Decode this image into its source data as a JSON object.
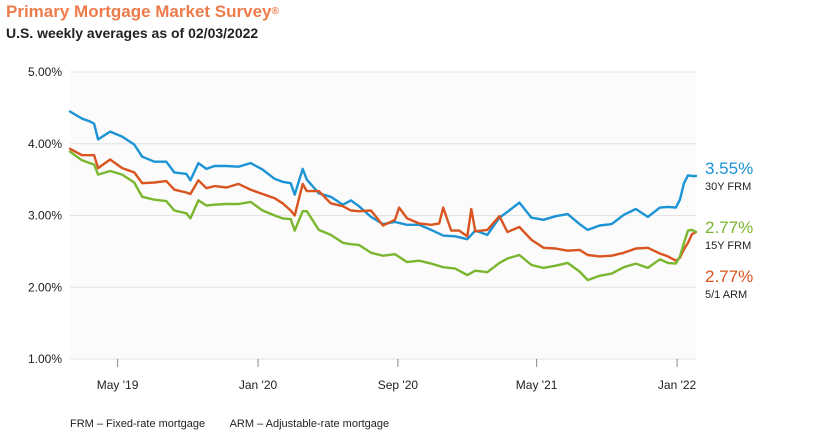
{
  "header": {
    "title": "Primary Mortgage Market Survey",
    "title_mark": "®",
    "subtitle": "U.S. weekly averages as of 02/03/2022"
  },
  "footer": {
    "frm_note": "FRM – Fixed-rate mortgage",
    "arm_note": "ARM – Adjustable-rate mortgage"
  },
  "colors": {
    "frm30": "#1b93d4",
    "frm15": "#7ab62e",
    "arm51": "#d9541f",
    "grid": "#e3e3e3",
    "title": "#ee7b4b"
  },
  "chart_data": {
    "type": "line",
    "title": "Primary Mortgage Market Survey",
    "subtitle": "U.S. weekly averages as of 02/03/2022",
    "xlabel": "",
    "ylabel": "",
    "x_ticks": [
      "May '19",
      "Jan '20",
      "Sep '20",
      "May '21",
      "Jan '22"
    ],
    "x_tick_dates": [
      "2019-05-01",
      "2020-01-01",
      "2020-09-01",
      "2021-05-01",
      "2022-01-01"
    ],
    "y_ticks": [
      "1.00%",
      "2.00%",
      "3.00%",
      "4.00%",
      "5.00%"
    ],
    "ylim": [
      1.0,
      5.0
    ],
    "xlim": [
      "2019-02-07",
      "2022-02-03"
    ],
    "grid": true,
    "legend": "right-end labels",
    "series": [
      {
        "name": "30Y FRM",
        "last_value_label": "3.55%",
        "color_key": "frm30",
        "points": [
          [
            "2019-02-07",
            4.45
          ],
          [
            "2019-02-28",
            4.35
          ],
          [
            "2019-03-14",
            4.31
          ],
          [
            "2019-03-21",
            4.28
          ],
          [
            "2019-03-28",
            4.06
          ],
          [
            "2019-04-18",
            4.17
          ],
          [
            "2019-05-09",
            4.1
          ],
          [
            "2019-05-30",
            3.99
          ],
          [
            "2019-06-13",
            3.82
          ],
          [
            "2019-07-04",
            3.75
          ],
          [
            "2019-07-25",
            3.75
          ],
          [
            "2019-08-08",
            3.6
          ],
          [
            "2019-08-29",
            3.58
          ],
          [
            "2019-09-05",
            3.49
          ],
          [
            "2019-09-19",
            3.73
          ],
          [
            "2019-10-03",
            3.65
          ],
          [
            "2019-10-17",
            3.69
          ],
          [
            "2019-11-07",
            3.69
          ],
          [
            "2019-11-28",
            3.68
          ],
          [
            "2019-12-19",
            3.73
          ],
          [
            "2020-01-09",
            3.64
          ],
          [
            "2020-01-30",
            3.51
          ],
          [
            "2020-02-13",
            3.47
          ],
          [
            "2020-02-27",
            3.45
          ],
          [
            "2020-03-05",
            3.29
          ],
          [
            "2020-03-19",
            3.65
          ],
          [
            "2020-03-26",
            3.5
          ],
          [
            "2020-04-16",
            3.31
          ],
          [
            "2020-05-07",
            3.26
          ],
          [
            "2020-05-28",
            3.15
          ],
          [
            "2020-06-11",
            3.21
          ],
          [
            "2020-06-25",
            3.13
          ],
          [
            "2020-07-16",
            2.98
          ],
          [
            "2020-08-06",
            2.88
          ],
          [
            "2020-08-27",
            2.91
          ],
          [
            "2020-09-17",
            2.87
          ],
          [
            "2020-10-08",
            2.87
          ],
          [
            "2020-10-29",
            2.8
          ],
          [
            "2020-11-19",
            2.72
          ],
          [
            "2020-12-10",
            2.71
          ],
          [
            "2020-12-31",
            2.67
          ],
          [
            "2021-01-14",
            2.79
          ],
          [
            "2021-02-04",
            2.73
          ],
          [
            "2021-02-25",
            2.97
          ],
          [
            "2021-03-11",
            3.05
          ],
          [
            "2021-04-01",
            3.18
          ],
          [
            "2021-04-22",
            2.97
          ],
          [
            "2021-05-13",
            2.94
          ],
          [
            "2021-06-03",
            2.99
          ],
          [
            "2021-06-24",
            3.02
          ],
          [
            "2021-07-15",
            2.88
          ],
          [
            "2021-07-29",
            2.8
          ],
          [
            "2021-08-19",
            2.86
          ],
          [
            "2021-09-09",
            2.88
          ],
          [
            "2021-09-30",
            3.01
          ],
          [
            "2021-10-21",
            3.09
          ],
          [
            "2021-11-11",
            2.98
          ],
          [
            "2021-12-02",
            3.11
          ],
          [
            "2021-12-16",
            3.12
          ],
          [
            "2021-12-30",
            3.11
          ],
          [
            "2022-01-06",
            3.22
          ],
          [
            "2022-01-13",
            3.45
          ],
          [
            "2022-01-20",
            3.56
          ],
          [
            "2022-01-27",
            3.55
          ],
          [
            "2022-02-03",
            3.55
          ]
        ]
      },
      {
        "name": "15Y FRM",
        "last_value_label": "2.77%",
        "color_key": "frm15",
        "points": [
          [
            "2019-02-07",
            3.89
          ],
          [
            "2019-02-28",
            3.77
          ],
          [
            "2019-03-21",
            3.71
          ],
          [
            "2019-03-28",
            3.57
          ],
          [
            "2019-04-18",
            3.62
          ],
          [
            "2019-05-09",
            3.57
          ],
          [
            "2019-05-30",
            3.46
          ],
          [
            "2019-06-13",
            3.26
          ],
          [
            "2019-07-04",
            3.22
          ],
          [
            "2019-07-25",
            3.2
          ],
          [
            "2019-08-08",
            3.07
          ],
          [
            "2019-08-29",
            3.03
          ],
          [
            "2019-09-05",
            2.96
          ],
          [
            "2019-09-19",
            3.21
          ],
          [
            "2019-10-03",
            3.14
          ],
          [
            "2019-10-17",
            3.15
          ],
          [
            "2019-11-07",
            3.16
          ],
          [
            "2019-11-28",
            3.16
          ],
          [
            "2019-12-19",
            3.19
          ],
          [
            "2020-01-09",
            3.07
          ],
          [
            "2020-01-30",
            3.0
          ],
          [
            "2020-02-13",
            2.96
          ],
          [
            "2020-02-27",
            2.95
          ],
          [
            "2020-03-05",
            2.79
          ],
          [
            "2020-03-19",
            3.06
          ],
          [
            "2020-03-26",
            3.06
          ],
          [
            "2020-04-16",
            2.8
          ],
          [
            "2020-05-07",
            2.73
          ],
          [
            "2020-05-28",
            2.62
          ],
          [
            "2020-06-11",
            2.6
          ],
          [
            "2020-06-25",
            2.59
          ],
          [
            "2020-07-16",
            2.48
          ],
          [
            "2020-08-06",
            2.44
          ],
          [
            "2020-08-27",
            2.46
          ],
          [
            "2020-09-17",
            2.35
          ],
          [
            "2020-10-08",
            2.37
          ],
          [
            "2020-10-29",
            2.33
          ],
          [
            "2020-11-19",
            2.28
          ],
          [
            "2020-12-10",
            2.26
          ],
          [
            "2020-12-31",
            2.17
          ],
          [
            "2021-01-14",
            2.23
          ],
          [
            "2021-02-04",
            2.21
          ],
          [
            "2021-02-25",
            2.34
          ],
          [
            "2021-03-11",
            2.4
          ],
          [
            "2021-04-01",
            2.45
          ],
          [
            "2021-04-22",
            2.31
          ],
          [
            "2021-05-13",
            2.27
          ],
          [
            "2021-06-03",
            2.3
          ],
          [
            "2021-06-24",
            2.34
          ],
          [
            "2021-07-15",
            2.22
          ],
          [
            "2021-07-29",
            2.1
          ],
          [
            "2021-08-19",
            2.16
          ],
          [
            "2021-09-09",
            2.19
          ],
          [
            "2021-09-30",
            2.28
          ],
          [
            "2021-10-21",
            2.33
          ],
          [
            "2021-11-11",
            2.27
          ],
          [
            "2021-12-02",
            2.39
          ],
          [
            "2021-12-16",
            2.34
          ],
          [
            "2021-12-30",
            2.33
          ],
          [
            "2022-01-06",
            2.43
          ],
          [
            "2022-01-13",
            2.62
          ],
          [
            "2022-01-20",
            2.79
          ],
          [
            "2022-01-27",
            2.8
          ],
          [
            "2022-02-03",
            2.77
          ]
        ]
      },
      {
        "name": "5/1 ARM",
        "last_value_label": "2.77%",
        "color_key": "arm51",
        "points": [
          [
            "2019-02-07",
            3.93
          ],
          [
            "2019-02-28",
            3.84
          ],
          [
            "2019-03-21",
            3.84
          ],
          [
            "2019-03-28",
            3.66
          ],
          [
            "2019-04-18",
            3.78
          ],
          [
            "2019-05-09",
            3.66
          ],
          [
            "2019-05-30",
            3.6
          ],
          [
            "2019-06-13",
            3.45
          ],
          [
            "2019-07-04",
            3.46
          ],
          [
            "2019-07-25",
            3.48
          ],
          [
            "2019-08-08",
            3.36
          ],
          [
            "2019-08-29",
            3.32
          ],
          [
            "2019-09-05",
            3.3
          ],
          [
            "2019-09-19",
            3.49
          ],
          [
            "2019-10-03",
            3.38
          ],
          [
            "2019-10-17",
            3.41
          ],
          [
            "2019-11-07",
            3.39
          ],
          [
            "2019-11-28",
            3.44
          ],
          [
            "2019-12-19",
            3.36
          ],
          [
            "2020-01-09",
            3.3
          ],
          [
            "2020-01-30",
            3.24
          ],
          [
            "2020-02-13",
            3.17
          ],
          [
            "2020-02-27",
            3.07
          ],
          [
            "2020-03-05",
            3.0
          ],
          [
            "2020-03-19",
            3.44
          ],
          [
            "2020-03-26",
            3.34
          ],
          [
            "2020-04-16",
            3.34
          ],
          [
            "2020-05-07",
            3.17
          ],
          [
            "2020-05-28",
            3.13
          ],
          [
            "2020-06-11",
            3.07
          ],
          [
            "2020-06-25",
            3.06
          ],
          [
            "2020-07-16",
            3.07
          ],
          [
            "2020-08-06",
            2.86
          ],
          [
            "2020-08-27",
            2.94
          ],
          [
            "2020-09-03",
            3.11
          ],
          [
            "2020-09-17",
            2.96
          ],
          [
            "2020-10-08",
            2.89
          ],
          [
            "2020-10-29",
            2.87
          ],
          [
            "2020-11-12",
            2.89
          ],
          [
            "2020-11-19",
            3.11
          ],
          [
            "2020-12-03",
            2.79
          ],
          [
            "2020-12-17",
            2.79
          ],
          [
            "2020-12-31",
            2.71
          ],
          [
            "2021-01-07",
            3.09
          ],
          [
            "2021-01-14",
            2.78
          ],
          [
            "2021-02-04",
            2.8
          ],
          [
            "2021-02-25",
            2.99
          ],
          [
            "2021-03-11",
            2.77
          ],
          [
            "2021-04-01",
            2.84
          ],
          [
            "2021-04-22",
            2.66
          ],
          [
            "2021-05-13",
            2.55
          ],
          [
            "2021-06-03",
            2.54
          ],
          [
            "2021-06-24",
            2.51
          ],
          [
            "2021-07-15",
            2.52
          ],
          [
            "2021-07-29",
            2.45
          ],
          [
            "2021-08-19",
            2.43
          ],
          [
            "2021-09-09",
            2.44
          ],
          [
            "2021-09-30",
            2.48
          ],
          [
            "2021-10-21",
            2.54
          ],
          [
            "2021-11-11",
            2.55
          ],
          [
            "2021-12-02",
            2.47
          ],
          [
            "2021-12-16",
            2.43
          ],
          [
            "2021-12-30",
            2.37
          ],
          [
            "2022-01-06",
            2.41
          ],
          [
            "2022-01-13",
            2.53
          ],
          [
            "2022-01-20",
            2.62
          ],
          [
            "2022-01-27",
            2.74
          ],
          [
            "2022-02-03",
            2.77
          ]
        ]
      }
    ]
  }
}
